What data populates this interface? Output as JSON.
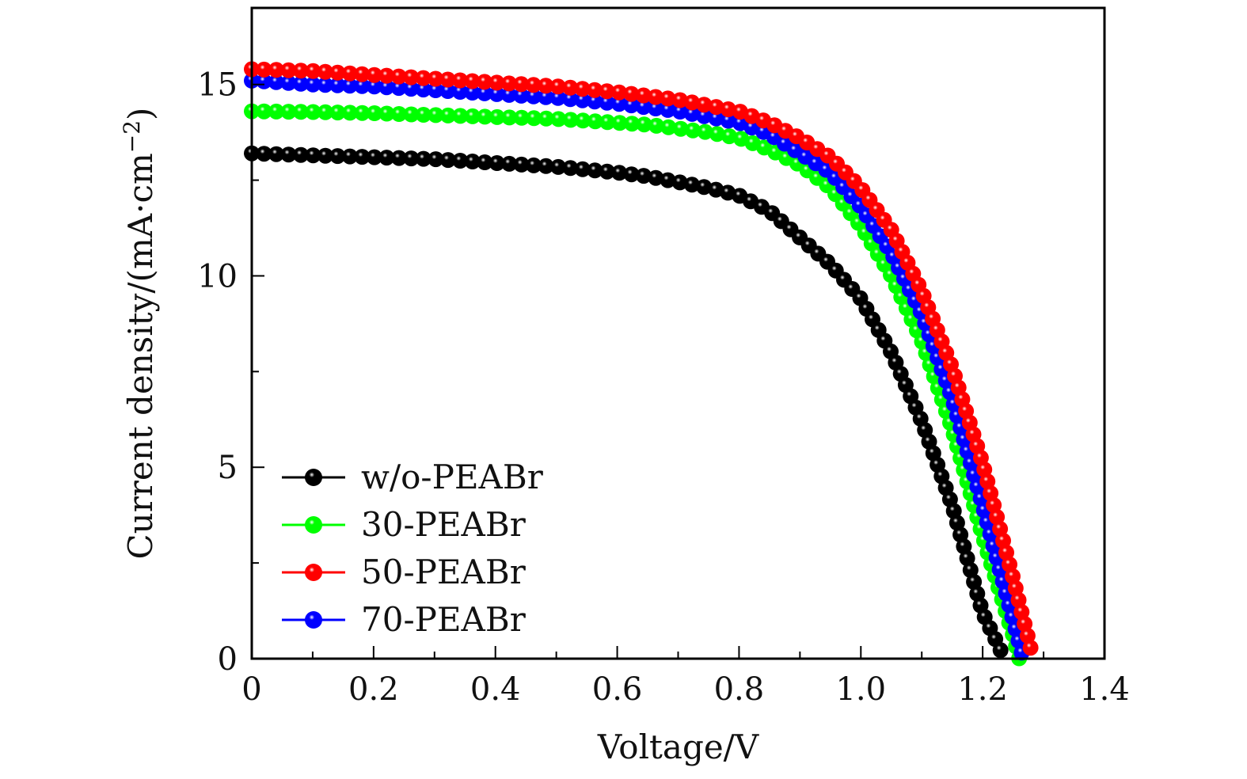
{
  "chart_data": {
    "type": "line",
    "title": "",
    "xlabel": "Voltage/V",
    "ylabel": "Current density/(mA·cm",
    "ylabel_superscript": "−2",
    "ylabel_close": ")",
    "xlim": [
      0,
      1.4
    ],
    "ylim": [
      0,
      17
    ],
    "x_ticks": [
      0,
      0.2,
      0.4,
      0.6,
      0.8,
      1.0,
      1.2,
      1.4
    ],
    "x_tick_labels": [
      "0",
      "0.2",
      "0.4",
      "0.6",
      "0.8",
      "1.0",
      "1.2",
      "1.4"
    ],
    "x_minor_step": 0.1,
    "y_ticks": [
      0,
      5,
      10,
      15
    ],
    "y_tick_labels": [
      "0",
      "5",
      "10",
      "15"
    ],
    "y_minor_step": 2.5,
    "grid": false,
    "legend_position": "bottom-left",
    "marker": "sphere",
    "series": [
      {
        "name": "w/o-PEABr",
        "color": "#000000",
        "x": [
          0,
          0.1,
          0.2,
          0.3,
          0.4,
          0.5,
          0.6,
          0.65,
          0.7,
          0.75,
          0.8,
          0.85,
          0.9,
          0.95,
          1.0,
          1.05,
          1.1,
          1.15,
          1.2,
          1.23
        ],
        "y": [
          13.2,
          13.15,
          13.1,
          13.05,
          12.95,
          12.85,
          12.7,
          12.6,
          12.45,
          12.3,
          12.1,
          11.7,
          11.0,
          10.3,
          9.4,
          8.0,
          6.2,
          4.0,
          1.2,
          0.2
        ]
      },
      {
        "name": "30-PEABr",
        "color": "#00ff00",
        "x": [
          0,
          0.1,
          0.2,
          0.3,
          0.4,
          0.5,
          0.6,
          0.65,
          0.7,
          0.75,
          0.8,
          0.85,
          0.9,
          0.95,
          1.0,
          1.05,
          1.1,
          1.15,
          1.2,
          1.25,
          1.26
        ],
        "y": [
          14.3,
          14.28,
          14.25,
          14.2,
          14.15,
          14.1,
          14.0,
          13.95,
          13.85,
          13.75,
          13.6,
          13.3,
          12.9,
          12.3,
          11.3,
          10.0,
          8.3,
          6.0,
          3.2,
          0.6,
          0.0
        ]
      },
      {
        "name": "50-PEABr",
        "color": "#ff0000",
        "x": [
          0,
          0.1,
          0.2,
          0.3,
          0.4,
          0.5,
          0.6,
          0.65,
          0.7,
          0.75,
          0.8,
          0.85,
          0.9,
          0.95,
          1.0,
          1.05,
          1.1,
          1.15,
          1.2,
          1.25,
          1.28
        ],
        "y": [
          15.4,
          15.35,
          15.25,
          15.15,
          15.05,
          14.95,
          14.8,
          14.7,
          14.6,
          14.45,
          14.3,
          14.0,
          13.6,
          13.1,
          12.3,
          11.2,
          9.6,
          7.6,
          5.1,
          2.1,
          0.2
        ]
      },
      {
        "name": "70-PEABr",
        "color": "#0000ff",
        "x": [
          0,
          0.1,
          0.2,
          0.3,
          0.4,
          0.5,
          0.6,
          0.65,
          0.7,
          0.75,
          0.8,
          0.85,
          0.9,
          0.95,
          1.0,
          1.05,
          1.1,
          1.15,
          1.2,
          1.25,
          1.265
        ],
        "y": [
          15.1,
          15.0,
          14.95,
          14.85,
          14.75,
          14.65,
          14.5,
          14.4,
          14.3,
          14.15,
          14.0,
          13.7,
          13.2,
          12.7,
          11.8,
          10.6,
          9.0,
          6.8,
          4.0,
          1.0,
          0.1
        ]
      }
    ]
  }
}
